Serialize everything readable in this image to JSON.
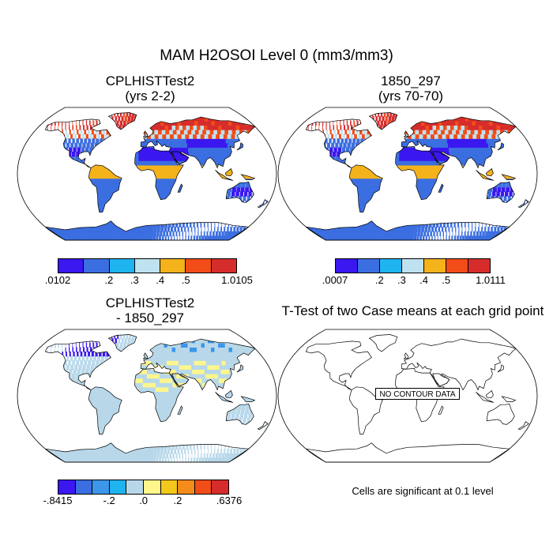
{
  "figure": {
    "title": "MAM H2OSOI Level 0 (mm3/mm3)"
  },
  "panels": [
    {
      "title_line1": "CPLHISTTest2",
      "title_line2": "(yrs 2-2)",
      "colorbar": {
        "colors": [
          "#3b17f0",
          "#3b6ee0",
          "#1eb4f0",
          "#bfe2f0",
          "#f4b21b",
          "#f24c18",
          "#d72c2c"
        ],
        "labels": [
          ".0102",
          ".2",
          ".3",
          ".4",
          ".5",
          "1.0105"
        ]
      }
    },
    {
      "title_line1": "1850_297",
      "title_line2": "(yrs 70-70)",
      "colorbar": {
        "colors": [
          "#3b17f0",
          "#3b6ee0",
          "#1eb4f0",
          "#bfe2f0",
          "#f4b21b",
          "#f24c18",
          "#d72c2c"
        ],
        "labels": [
          ".0007",
          ".2",
          ".3",
          ".4",
          ".5",
          "1.0111"
        ]
      }
    },
    {
      "title_line1": "CPLHISTTest2",
      "title_line2": "- 1850_297",
      "colorbar": {
        "colors": [
          "#3b17f0",
          "#3b6ee0",
          "#3c96ea",
          "#1eb4f0",
          "#b8d8ea",
          "#fff68c",
          "#f4c81b",
          "#f48c1b",
          "#f24c18",
          "#d72c2c"
        ],
        "labels": [
          "-.8415",
          "-.2",
          ".0",
          ".2",
          ".6376"
        ]
      }
    },
    {
      "title_line1": "T-Test of two Case means at each grid point",
      "no_contour_label": "NO CONTOUR DATA",
      "footnote": "Cells are significant at 0.1 level"
    }
  ],
  "colors": {
    "land_outline": "#000000",
    "ocean": "#ffffff"
  }
}
